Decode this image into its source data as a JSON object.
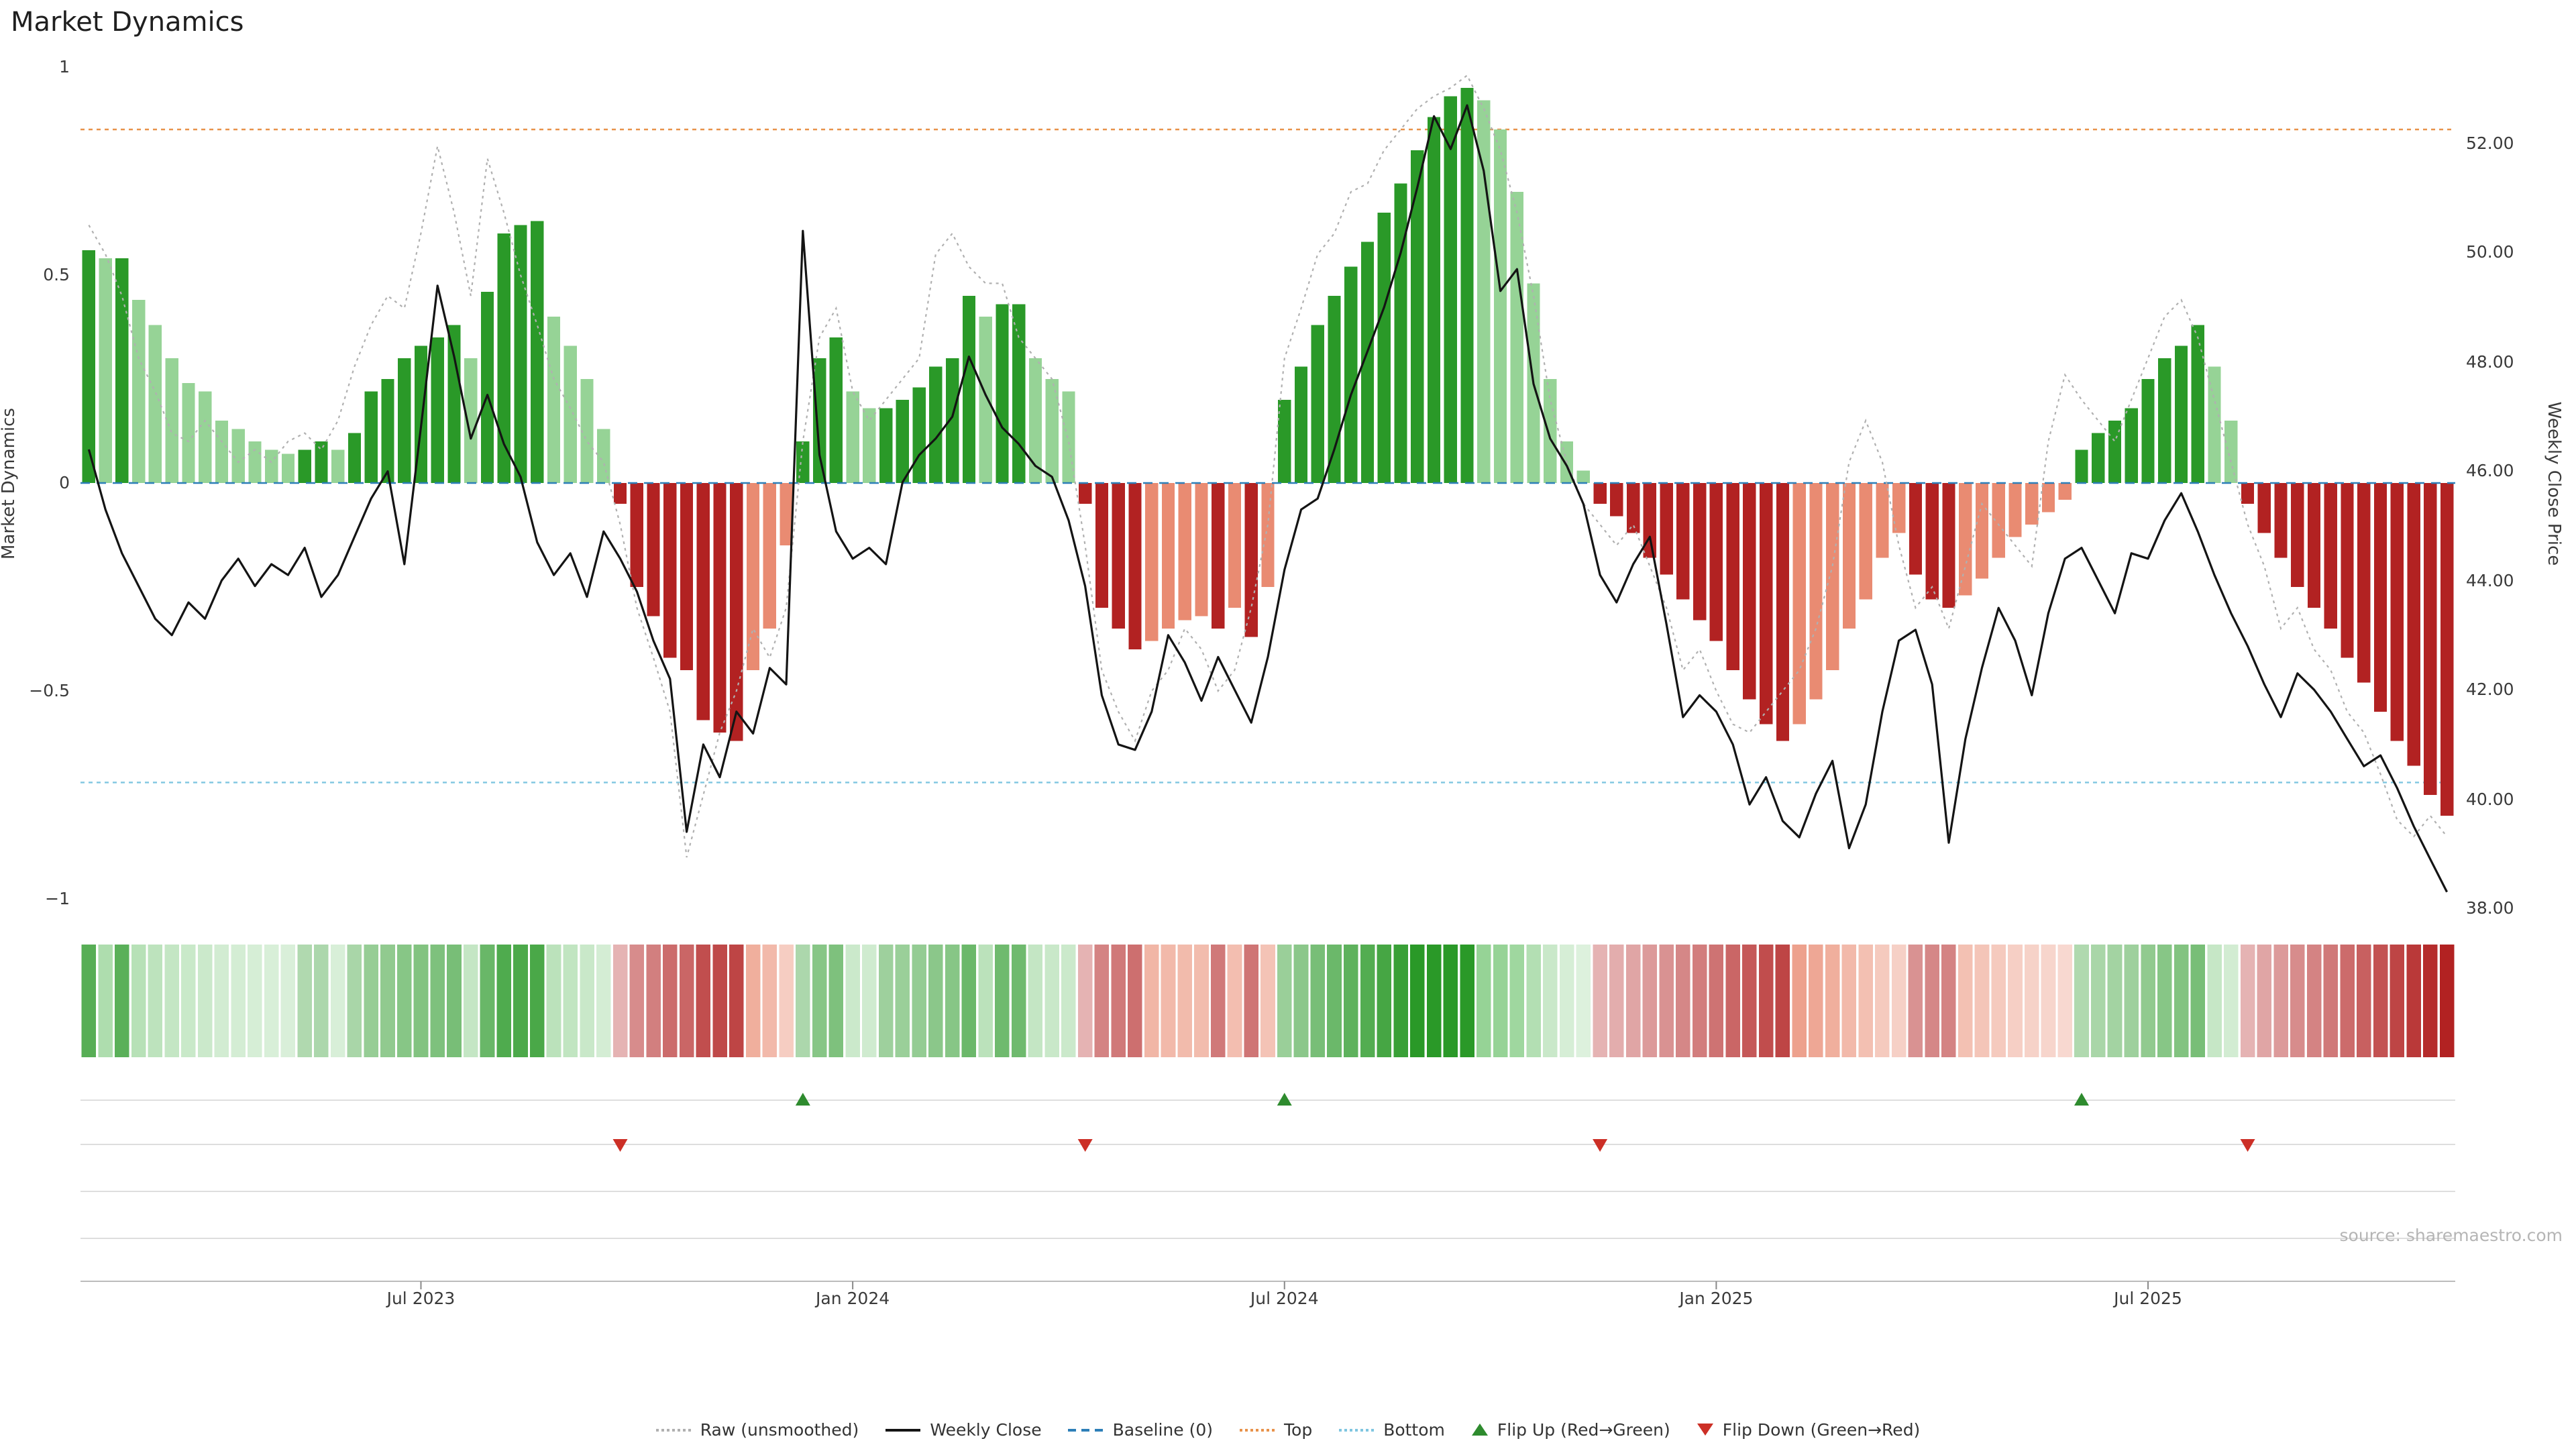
{
  "title": "Market Dynamics",
  "source": "source: sharemaestro.com",
  "axes": {
    "left_label": "Market Dynamics",
    "right_label": "Weekly Close Price",
    "left_ticks": [
      {
        "v": 1,
        "label": "1"
      },
      {
        "v": 0.5,
        "label": "0.5"
      },
      {
        "v": 0,
        "label": "0"
      },
      {
        "v": -0.5,
        "label": "−0.5"
      },
      {
        "v": -1,
        "label": "−1"
      }
    ],
    "right_ticks": [
      {
        "v": 52,
        "label": "52.00"
      },
      {
        "v": 50,
        "label": "50.00"
      },
      {
        "v": 48,
        "label": "48.00"
      },
      {
        "v": 46,
        "label": "46.00"
      },
      {
        "v": 44,
        "label": "44.00"
      },
      {
        "v": 42,
        "label": "42.00"
      },
      {
        "v": 40,
        "label": "40.00"
      },
      {
        "v": 38,
        "label": "38.00"
      }
    ],
    "x_ticks": [
      {
        "i": 20,
        "label": "Jul 2023"
      },
      {
        "i": 46,
        "label": "Jan 2024"
      },
      {
        "i": 72,
        "label": "Jul 2024"
      },
      {
        "i": 98,
        "label": "Jan 2025"
      },
      {
        "i": 124,
        "label": "Jul 2025"
      }
    ]
  },
  "colors": {
    "bar_green": "#2a9928",
    "bar_green_light": "#96d396",
    "bar_red": "#b22222",
    "bar_red_light": "#e98b72",
    "baseline": "#2d7fb8",
    "top": "#e8924a",
    "bottom": "#7fc6e0",
    "raw": "#b0b0b0",
    "close": "#141414",
    "flip_up": "#2e8b2e",
    "flip_down": "#cc2f26",
    "grid": "#dedede",
    "axis_line": "#bcbcbc",
    "tick_mark": "#8a8a8a"
  },
  "chart_data": {
    "type": "bar",
    "x_unit": "week",
    "n_points": 143,
    "ylim_left": [
      -1,
      1
    ],
    "ylim_right": [
      37.8,
      52.6
    ],
    "thresholds": {
      "baseline": 0,
      "top": 0.85,
      "bottom": -0.72
    },
    "flip_up_indices": [
      43,
      72,
      120
    ],
    "flip_down_indices": [
      32,
      60,
      91,
      130
    ],
    "series": [
      {
        "name": "Market Dynamics (smoothed)",
        "kind": "bar",
        "axis": "left",
        "values": [
          0.56,
          0.54,
          0.54,
          0.44,
          0.38,
          0.3,
          0.24,
          0.22,
          0.15,
          0.13,
          0.1,
          0.08,
          0.07,
          0.08,
          0.1,
          0.08,
          0.12,
          0.22,
          0.25,
          0.3,
          0.33,
          0.35,
          0.38,
          0.3,
          0.46,
          0.6,
          0.62,
          0.63,
          0.4,
          0.33,
          0.25,
          0.13,
          -0.05,
          -0.25,
          -0.32,
          -0.42,
          -0.45,
          -0.57,
          -0.6,
          -0.62,
          -0.45,
          -0.35,
          -0.15,
          0.1,
          0.3,
          0.35,
          0.22,
          0.18,
          0.18,
          0.2,
          0.23,
          0.28,
          0.3,
          0.45,
          0.4,
          0.43,
          0.43,
          0.3,
          0.25,
          0.22,
          -0.05,
          -0.3,
          -0.35,
          -0.4,
          -0.38,
          -0.35,
          -0.33,
          -0.32,
          -0.35,
          -0.3,
          -0.37,
          -0.25,
          0.2,
          0.28,
          0.38,
          0.45,
          0.52,
          0.58,
          0.65,
          0.72,
          0.8,
          0.88,
          0.93,
          0.95,
          0.92,
          0.85,
          0.7,
          0.48,
          0.25,
          0.1,
          0.03,
          -0.05,
          -0.08,
          -0.12,
          -0.18,
          -0.22,
          -0.28,
          -0.33,
          -0.38,
          -0.45,
          -0.52,
          -0.58,
          -0.62,
          -0.58,
          -0.52,
          -0.45,
          -0.35,
          -0.28,
          -0.18,
          -0.12,
          -0.22,
          -0.28,
          -0.3,
          -0.27,
          -0.23,
          -0.18,
          -0.13,
          -0.1,
          -0.07,
          -0.04,
          0.08,
          0.12,
          0.15,
          0.18,
          0.25,
          0.3,
          0.33,
          0.38,
          0.28,
          0.15,
          -0.05,
          -0.12,
          -0.18,
          -0.25,
          -0.3,
          -0.35,
          -0.42,
          -0.48,
          -0.55,
          -0.62,
          -0.68,
          -0.75,
          -0.8
        ]
      },
      {
        "name": "Raw (unsmoothed)",
        "kind": "line",
        "axis": "left",
        "values": [
          0.62,
          0.55,
          0.45,
          0.3,
          0.22,
          0.12,
          0.1,
          0.15,
          0.1,
          0.05,
          0.08,
          0.05,
          0.1,
          0.12,
          0.08,
          0.15,
          0.28,
          0.38,
          0.45,
          0.42,
          0.6,
          0.81,
          0.65,
          0.45,
          0.78,
          0.65,
          0.5,
          0.38,
          0.25,
          0.18,
          0.1,
          0.05,
          -0.1,
          -0.3,
          -0.42,
          -0.55,
          -0.9,
          -0.75,
          -0.6,
          -0.5,
          -0.35,
          -0.42,
          -0.3,
          0.1,
          0.35,
          0.42,
          0.22,
          0.15,
          0.2,
          0.25,
          0.3,
          0.55,
          0.6,
          0.52,
          0.48,
          0.48,
          0.35,
          0.3,
          0.25,
          0.1,
          -0.15,
          -0.45,
          -0.55,
          -0.62,
          -0.5,
          -0.45,
          -0.35,
          -0.4,
          -0.5,
          -0.45,
          -0.3,
          -0.1,
          0.3,
          0.42,
          0.55,
          0.6,
          0.7,
          0.72,
          0.8,
          0.85,
          0.9,
          0.93,
          0.95,
          0.98,
          0.9,
          0.8,
          0.65,
          0.45,
          0.2,
          0.05,
          -0.05,
          -0.1,
          -0.15,
          -0.1,
          -0.2,
          -0.3,
          -0.45,
          -0.4,
          -0.5,
          -0.58,
          -0.6,
          -0.55,
          -0.5,
          -0.45,
          -0.35,
          -0.2,
          0.05,
          0.15,
          0.05,
          -0.15,
          -0.3,
          -0.25,
          -0.35,
          -0.2,
          -0.05,
          -0.1,
          -0.15,
          -0.2,
          0.1,
          0.26,
          0.2,
          0.15,
          0.1,
          0.2,
          0.3,
          0.4,
          0.44,
          0.35,
          0.2,
          0.05,
          -0.1,
          -0.2,
          -0.35,
          -0.3,
          -0.4,
          -0.45,
          -0.55,
          -0.6,
          -0.7,
          -0.81,
          -0.85,
          -0.8,
          -0.85
        ]
      },
      {
        "name": "Weekly Close",
        "kind": "line",
        "axis": "right",
        "values": [
          46.4,
          45.3,
          44.5,
          43.9,
          43.3,
          43.0,
          43.6,
          43.3,
          44.0,
          44.4,
          43.9,
          44.3,
          44.1,
          44.6,
          43.7,
          44.1,
          44.8,
          45.5,
          46.0,
          44.3,
          46.8,
          49.4,
          48.1,
          46.6,
          47.4,
          46.5,
          45.9,
          44.7,
          44.1,
          44.5,
          43.7,
          44.9,
          44.4,
          43.8,
          42.9,
          42.2,
          39.4,
          41.0,
          40.4,
          41.6,
          41.2,
          42.4,
          42.1,
          50.4,
          46.3,
          44.9,
          44.4,
          44.6,
          44.3,
          45.8,
          46.3,
          46.6,
          47.0,
          48.1,
          47.4,
          46.8,
          46.5,
          46.1,
          45.9,
          45.1,
          43.9,
          41.9,
          41.0,
          40.9,
          41.6,
          43.0,
          42.5,
          41.8,
          42.6,
          42.0,
          41.4,
          42.6,
          44.2,
          45.3,
          45.5,
          46.4,
          47.4,
          48.2,
          49.0,
          50.0,
          51.2,
          52.5,
          51.9,
          52.7,
          51.5,
          49.3,
          49.7,
          47.6,
          46.6,
          46.1,
          45.4,
          44.1,
          43.6,
          44.3,
          44.8,
          43.2,
          41.5,
          41.9,
          41.6,
          41.0,
          39.9,
          40.4,
          39.6,
          39.3,
          40.1,
          40.7,
          39.1,
          39.9,
          41.6,
          42.9,
          43.1,
          42.1,
          39.2,
          41.1,
          42.4,
          43.5,
          42.9,
          41.9,
          43.4,
          44.4,
          44.6,
          44.0,
          43.4,
          44.5,
          44.4,
          45.1,
          45.6,
          44.9,
          44.1,
          43.4,
          42.8,
          42.1,
          41.5,
          42.3,
          42.0,
          41.6,
          41.1,
          40.6,
          40.8,
          40.2,
          39.5,
          38.9,
          38.3
        ]
      }
    ]
  },
  "legend": [
    {
      "label": "Raw (unsmoothed)",
      "swatch": "dotted-gray"
    },
    {
      "label": "Weekly Close",
      "swatch": "solid-black"
    },
    {
      "label": "Baseline (0)",
      "swatch": "dashed-blue"
    },
    {
      "label": "Top",
      "swatch": "dotted-orange"
    },
    {
      "label": "Bottom",
      "swatch": "dotted-lightblue"
    },
    {
      "label": "Flip Up (Red→Green)",
      "swatch": "triangle-up-green"
    },
    {
      "label": "Flip Down (Green→Red)",
      "swatch": "triangle-down-red"
    }
  ]
}
